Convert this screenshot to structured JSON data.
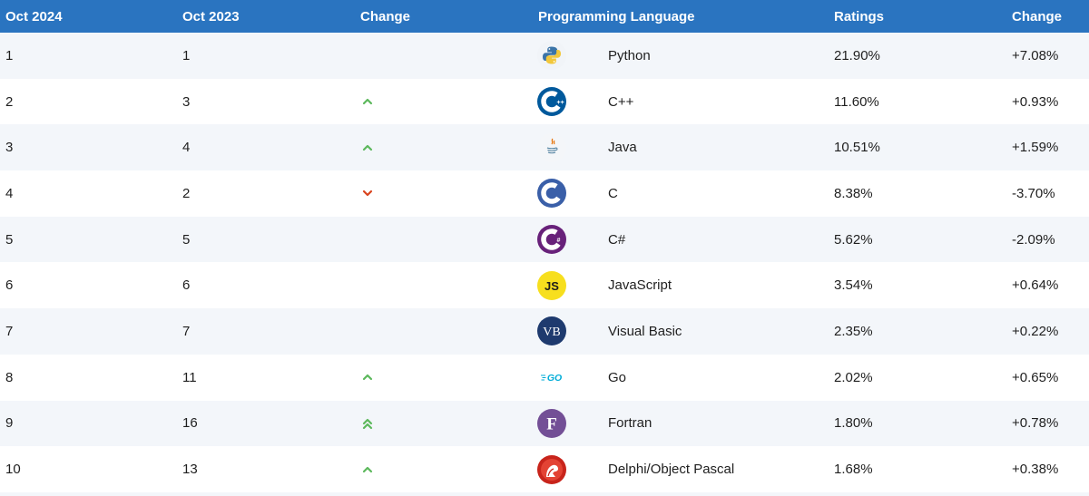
{
  "header": {
    "col_rank_2024": "Oct 2024",
    "col_rank_2023": "Oct 2023",
    "col_change": "Change",
    "col_language": "Programming Language",
    "col_ratings": "Ratings",
    "col_delta": "Change"
  },
  "colors": {
    "header_bg": "#2a74c0",
    "row_alt_bg": "#f3f6fa",
    "arrow_up": "#5cb85c",
    "arrow_down": "#d9431e"
  },
  "rows": [
    {
      "rank_2024": "1",
      "rank_2023": "1",
      "trend": "none",
      "icon": "python-logo-icon",
      "language": "Python",
      "rating": "21.90%",
      "delta": "+7.08%"
    },
    {
      "rank_2024": "2",
      "rank_2023": "3",
      "trend": "up",
      "icon": "cpp-logo-icon",
      "language": "C++",
      "rating": "11.60%",
      "delta": "+0.93%"
    },
    {
      "rank_2024": "3",
      "rank_2023": "4",
      "trend": "up",
      "icon": "java-logo-icon",
      "language": "Java",
      "rating": "10.51%",
      "delta": "+1.59%"
    },
    {
      "rank_2024": "4",
      "rank_2023": "2",
      "trend": "down",
      "icon": "c-logo-icon",
      "language": "C",
      "rating": "8.38%",
      "delta": "-3.70%"
    },
    {
      "rank_2024": "5",
      "rank_2023": "5",
      "trend": "none",
      "icon": "csharp-logo-icon",
      "language": "C#",
      "rating": "5.62%",
      "delta": "-2.09%"
    },
    {
      "rank_2024": "6",
      "rank_2023": "6",
      "trend": "none",
      "icon": "javascript-logo-icon",
      "language": "JavaScript",
      "rating": "3.54%",
      "delta": "+0.64%"
    },
    {
      "rank_2024": "7",
      "rank_2023": "7",
      "trend": "none",
      "icon": "visual-basic-logo-icon",
      "language": "Visual Basic",
      "rating": "2.35%",
      "delta": "+0.22%"
    },
    {
      "rank_2024": "8",
      "rank_2023": "11",
      "trend": "up",
      "icon": "go-logo-icon",
      "language": "Go",
      "rating": "2.02%",
      "delta": "+0.65%"
    },
    {
      "rank_2024": "9",
      "rank_2023": "16",
      "trend": "double-up",
      "icon": "fortran-logo-icon",
      "language": "Fortran",
      "rating": "1.80%",
      "delta": "+0.78%"
    },
    {
      "rank_2024": "10",
      "rank_2023": "13",
      "trend": "up",
      "icon": "delphi-logo-icon",
      "language": "Delphi/Object Pascal",
      "rating": "1.68%",
      "delta": "+0.38%"
    }
  ],
  "logo_text": {
    "javascript": "JS",
    "visual_basic": "VB",
    "go": "GO",
    "fortran": "F"
  }
}
